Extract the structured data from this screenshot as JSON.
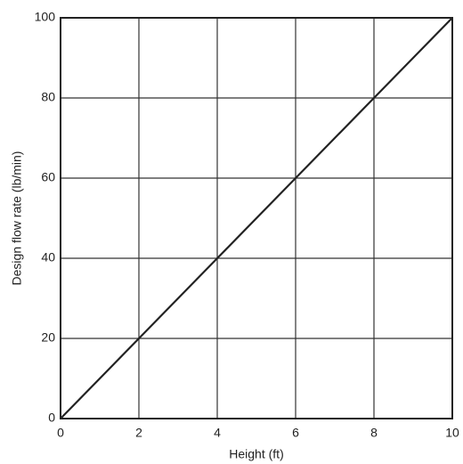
{
  "chart_data": {
    "type": "line",
    "xlabel": "Height (ft)",
    "ylabel": "Design flow rate (lb/min)",
    "x": [
      0,
      2,
      4,
      6,
      8,
      10
    ],
    "series": [
      {
        "color": "#222222",
        "values": [
          0,
          20,
          40,
          60,
          80,
          100
        ]
      }
    ],
    "xlim": [
      0,
      10
    ],
    "xticks": [
      0,
      2,
      4,
      6,
      8,
      10
    ],
    "ylim": [
      0,
      100
    ],
    "yticks": [
      0,
      20,
      40,
      60,
      80,
      100
    ],
    "grid": true
  }
}
